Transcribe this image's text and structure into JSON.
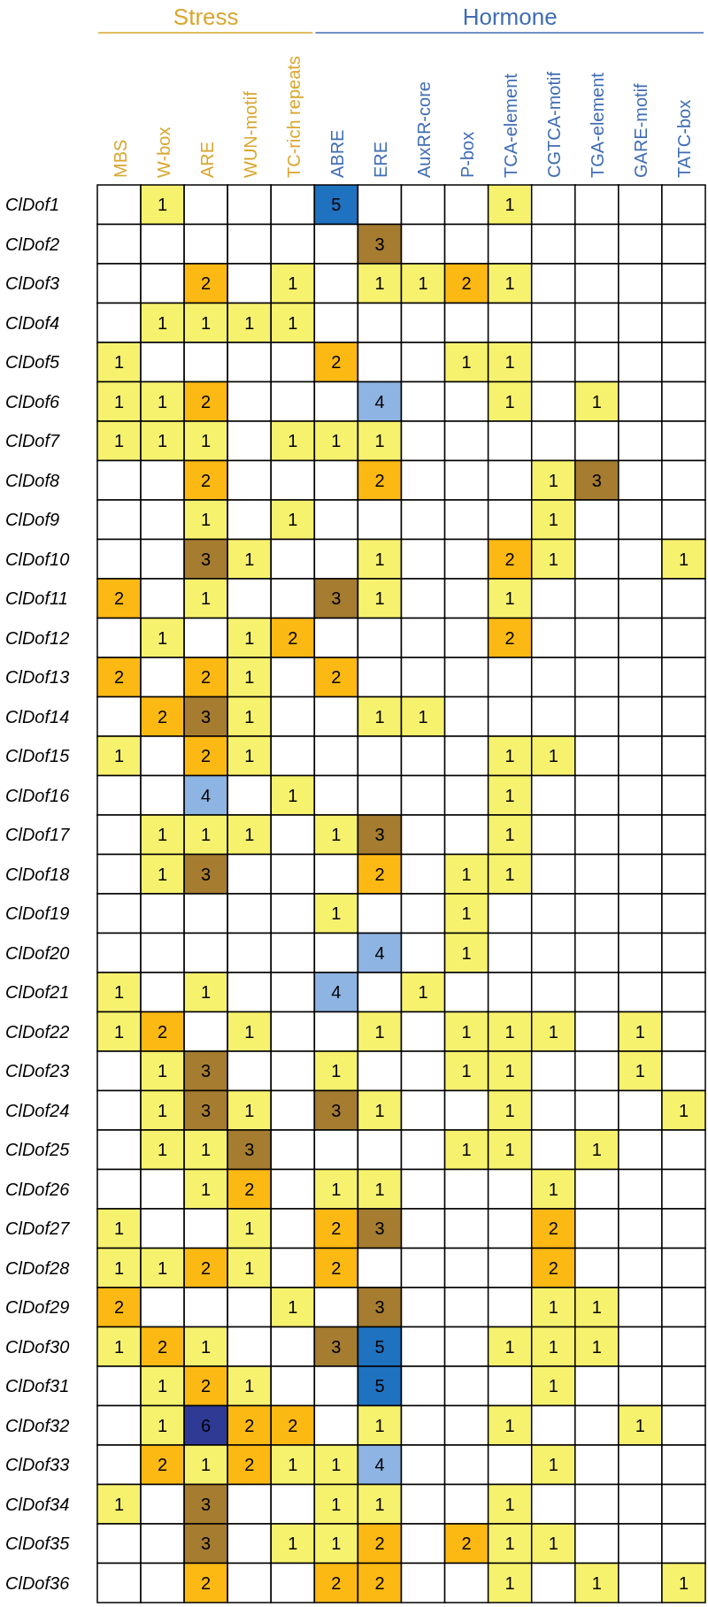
{
  "chart_data": {
    "type": "heatmap",
    "categories": [
      "MBS",
      "W-box",
      "ARE",
      "WUN-motif",
      "TC-rich repeats",
      "ABRE",
      "ERE",
      "AuxRR-core",
      "P-box",
      "TCA-element",
      "CGTCA-motif",
      "TGA-element",
      "GARE-motif",
      "TATC-box"
    ],
    "y_categories": [
      "ClDof1",
      "ClDof2",
      "ClDof3",
      "ClDof4",
      "ClDof5",
      "ClDof6",
      "ClDof7",
      "ClDof8",
      "ClDof9",
      "ClDof10",
      "ClDof11",
      "ClDof12",
      "ClDof13",
      "ClDof14",
      "ClDof15",
      "ClDof16",
      "ClDof17",
      "ClDof18",
      "ClDof19",
      "ClDof20",
      "ClDof21",
      "ClDof22",
      "ClDof23",
      "ClDof24",
      "ClDof25",
      "ClDof26",
      "ClDof27",
      "ClDof28",
      "ClDof29",
      "ClDof30",
      "ClDof31",
      "ClDof32",
      "ClDof33",
      "ClDof34",
      "ClDof35",
      "ClDof36"
    ],
    "annotations": [
      "Stress",
      "Hormone"
    ],
    "data_labels": true,
    "colors": [
      "#f7f26e",
      "#fdb913",
      "#a57c30",
      "#8db4e2",
      "#1f72c0",
      "#2e3a93"
    ],
    "cells": [
      [
        null,
        1,
        null,
        null,
        null,
        5,
        null,
        null,
        null,
        1,
        null,
        null,
        null,
        null
      ],
      [
        null,
        null,
        null,
        null,
        null,
        null,
        3,
        null,
        null,
        null,
        null,
        null,
        null,
        null
      ],
      [
        null,
        null,
        2,
        null,
        1,
        null,
        1,
        1,
        2,
        1,
        null,
        null,
        null,
        null
      ],
      [
        null,
        1,
        1,
        1,
        1,
        null,
        null,
        null,
        null,
        null,
        null,
        null,
        null,
        null
      ],
      [
        1,
        null,
        null,
        null,
        null,
        2,
        null,
        null,
        1,
        1,
        null,
        null,
        null,
        null
      ],
      [
        1,
        1,
        2,
        null,
        null,
        null,
        4,
        null,
        null,
        1,
        null,
        1,
        null,
        null
      ],
      [
        1,
        1,
        1,
        null,
        1,
        1,
        1,
        null,
        null,
        null,
        null,
        null,
        null,
        null
      ],
      [
        null,
        null,
        2,
        null,
        null,
        null,
        2,
        null,
        null,
        null,
        1,
        3,
        null,
        null
      ],
      [
        null,
        null,
        1,
        null,
        1,
        null,
        null,
        null,
        null,
        null,
        1,
        null,
        null,
        null
      ],
      [
        null,
        null,
        3,
        1,
        null,
        null,
        1,
        null,
        null,
        2,
        1,
        null,
        null,
        1
      ],
      [
        2,
        null,
        1,
        null,
        null,
        3,
        1,
        null,
        null,
        1,
        null,
        null,
        null,
        null
      ],
      [
        null,
        1,
        null,
        1,
        2,
        null,
        null,
        null,
        null,
        2,
        null,
        null,
        null,
        null
      ],
      [
        2,
        null,
        2,
        1,
        null,
        2,
        null,
        null,
        null,
        null,
        null,
        null,
        null,
        null
      ],
      [
        null,
        2,
        3,
        1,
        null,
        null,
        1,
        1,
        null,
        null,
        null,
        null,
        null,
        null
      ],
      [
        1,
        null,
        2,
        1,
        null,
        null,
        null,
        null,
        null,
        1,
        1,
        null,
        null,
        null
      ],
      [
        null,
        null,
        4,
        null,
        1,
        null,
        null,
        null,
        null,
        1,
        null,
        null,
        null,
        null
      ],
      [
        null,
        1,
        1,
        1,
        null,
        1,
        3,
        null,
        null,
        1,
        null,
        null,
        null,
        null
      ],
      [
        null,
        1,
        3,
        null,
        null,
        null,
        2,
        null,
        1,
        1,
        null,
        null,
        null,
        null
      ],
      [
        null,
        null,
        null,
        null,
        null,
        1,
        null,
        null,
        1,
        null,
        null,
        null,
        null,
        null
      ],
      [
        null,
        null,
        null,
        null,
        null,
        null,
        4,
        null,
        1,
        null,
        null,
        null,
        null,
        null
      ],
      [
        1,
        null,
        1,
        null,
        null,
        4,
        null,
        1,
        null,
        null,
        null,
        null,
        null,
        null
      ],
      [
        1,
        2,
        null,
        1,
        null,
        null,
        1,
        null,
        1,
        1,
        1,
        null,
        1,
        null
      ],
      [
        null,
        1,
        3,
        null,
        null,
        1,
        null,
        null,
        1,
        1,
        null,
        null,
        1,
        null
      ],
      [
        null,
        1,
        3,
        1,
        null,
        3,
        1,
        null,
        null,
        1,
        null,
        null,
        null,
        1
      ],
      [
        null,
        1,
        1,
        3,
        null,
        null,
        null,
        null,
        1,
        1,
        null,
        1,
        null,
        null
      ],
      [
        null,
        null,
        1,
        2,
        null,
        1,
        1,
        null,
        null,
        null,
        1,
        null,
        null,
        null
      ],
      [
        1,
        null,
        null,
        1,
        null,
        2,
        3,
        null,
        null,
        null,
        2,
        null,
        null,
        null
      ],
      [
        1,
        1,
        2,
        1,
        null,
        2,
        null,
        null,
        null,
        null,
        2,
        null,
        null,
        null
      ],
      [
        2,
        null,
        null,
        null,
        1,
        null,
        3,
        null,
        null,
        null,
        1,
        1,
        null,
        null
      ],
      [
        1,
        2,
        1,
        null,
        null,
        3,
        5,
        null,
        null,
        1,
        1,
        1,
        null,
        null
      ],
      [
        null,
        1,
        2,
        1,
        null,
        null,
        5,
        null,
        null,
        null,
        1,
        null,
        null,
        null
      ],
      [
        null,
        1,
        6,
        2,
        2,
        null,
        1,
        null,
        null,
        1,
        null,
        null,
        1,
        null
      ],
      [
        null,
        2,
        1,
        2,
        1,
        1,
        4,
        null,
        null,
        null,
        1,
        null,
        null,
        null
      ],
      [
        1,
        null,
        3,
        null,
        null,
        1,
        1,
        null,
        null,
        1,
        null,
        null,
        null,
        null
      ],
      [
        null,
        null,
        3,
        null,
        1,
        1,
        2,
        null,
        2,
        1,
        1,
        null,
        null,
        null
      ],
      [
        null,
        null,
        2,
        null,
        null,
        2,
        2,
        null,
        null,
        1,
        null,
        1,
        null,
        1
      ]
    ]
  }
}
